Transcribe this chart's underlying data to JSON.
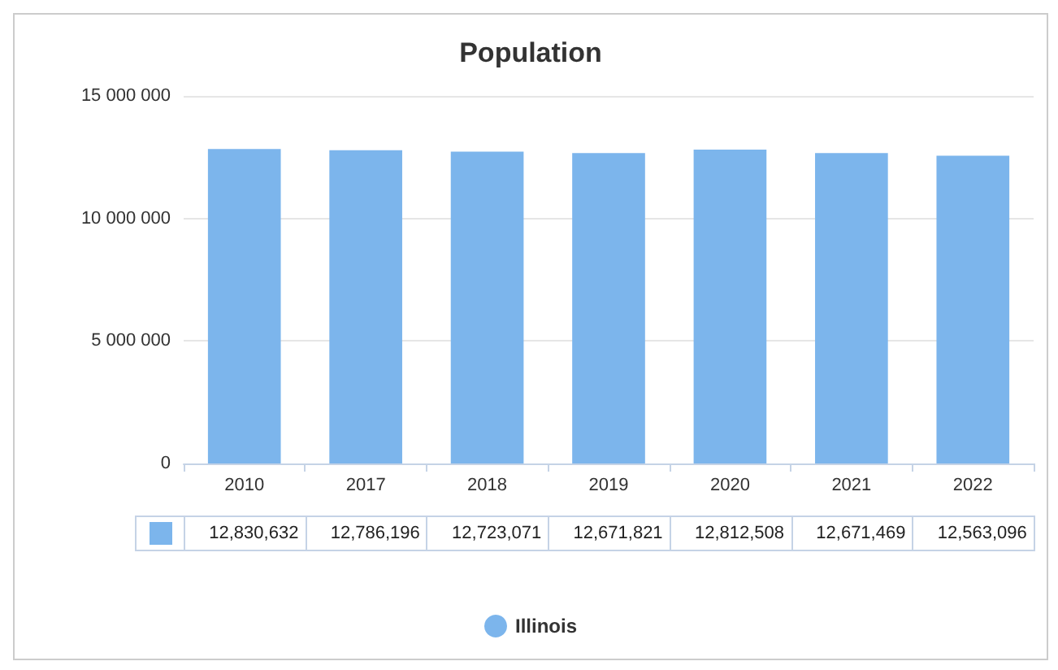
{
  "chart_data": {
    "type": "bar",
    "title": "Population",
    "categories": [
      "2010",
      "2017",
      "2018",
      "2019",
      "2020",
      "2021",
      "2022"
    ],
    "series": [
      {
        "name": "Illinois",
        "color": "#7cb5ec",
        "values": [
          12830632,
          12786196,
          12723071,
          12671821,
          12812508,
          12671469,
          12563096
        ],
        "value_labels": [
          "12,830,632",
          "12,786,196",
          "12,723,071",
          "12,671,821",
          "12,812,508",
          "12,671,469",
          "12,563,096"
        ]
      }
    ],
    "ylim": [
      0,
      15000000
    ],
    "yticks": [
      {
        "value": 0,
        "label": "0"
      },
      {
        "value": 5000000,
        "label": "5 000 000"
      },
      {
        "value": 10000000,
        "label": "10 000 000"
      },
      {
        "value": 15000000,
        "label": "15 000 000"
      }
    ],
    "grid": "y",
    "legend": "bottom"
  }
}
